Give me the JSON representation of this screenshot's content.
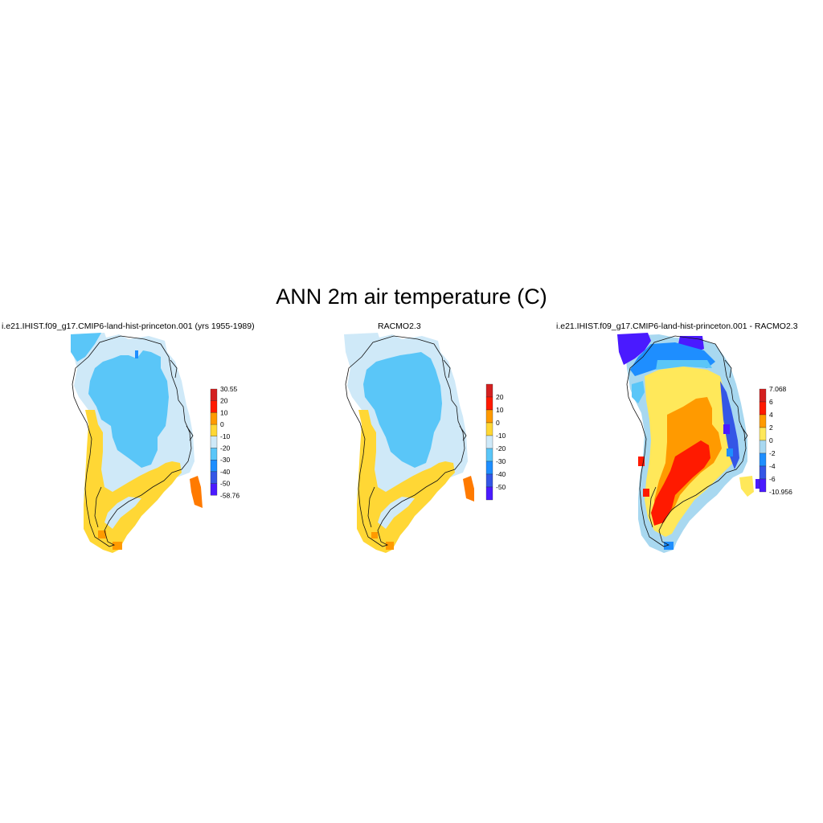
{
  "title": "ANN 2m air temperature (C)",
  "panels": [
    {
      "title": "i.e21.IHIST.f09_g17.CMIP6-land-hist-princeton.001 (yrs 1955-1989)",
      "colorbar": {
        "labels": [
          "30.55",
          "20",
          "10",
          "0",
          "-10",
          "-20",
          "-30",
          "-40",
          "-50",
          "-58.76"
        ],
        "colors": [
          "#d42020",
          "#ff1a00",
          "#ff9a00",
          "#ffd735",
          "#cfe9f8",
          "#5ac6f8",
          "#1e8eff",
          "#3456e6",
          "#4a1aff"
        ]
      }
    },
    {
      "title": "RACMO2.3",
      "colorbar": {
        "labels": [
          "20",
          "10",
          "0",
          "-10",
          "-20",
          "-30",
          "-40",
          "-50"
        ],
        "colors": [
          "#d42020",
          "#ff1a00",
          "#ff9a00",
          "#ffd735",
          "#cfe9f8",
          "#5ac6f8",
          "#1e8eff",
          "#3456e6",
          "#4a1aff"
        ]
      }
    },
    {
      "title": "i.e21.IHIST.f09_g17.CMIP6-land-hist-princeton.001 - RACMO2.3",
      "colorbar": {
        "labels": [
          "7.068",
          "6",
          "4",
          "2",
          "0",
          "-2",
          "-4",
          "-6",
          "-10.956"
        ],
        "colors": [
          "#d42020",
          "#ff1a00",
          "#ff9a00",
          "#ffe85a",
          "#a8d8f0",
          "#1e8eff",
          "#3456e6",
          "#4a1aff"
        ]
      }
    }
  ]
}
